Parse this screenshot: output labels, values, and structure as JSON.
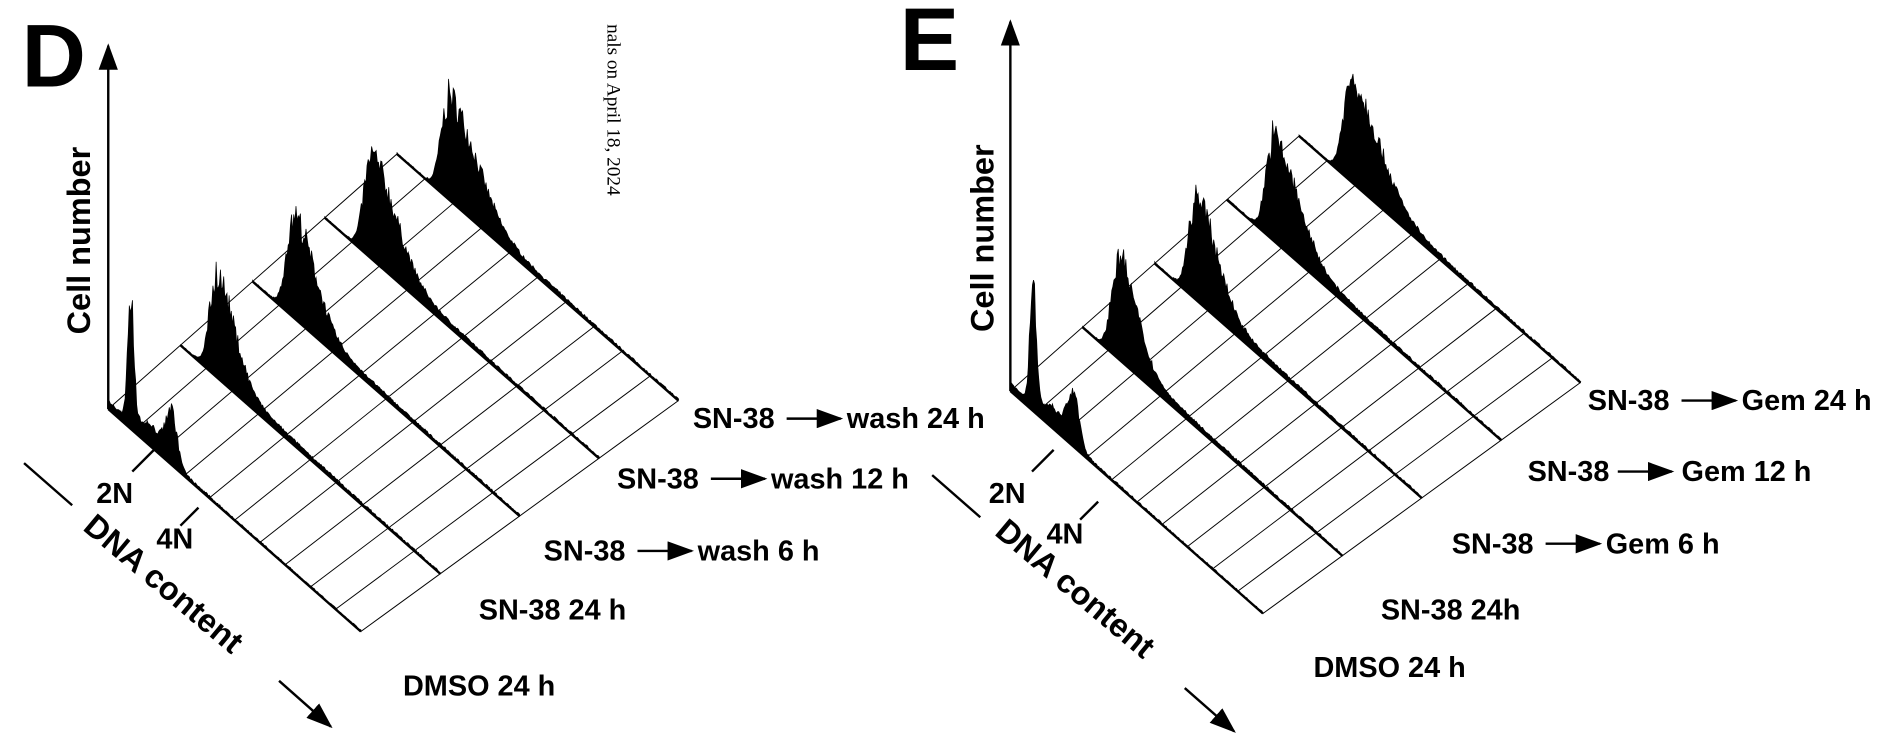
{
  "watermark": "nals on April 18, 2024",
  "panels": [
    {
      "label": "D",
      "y_axis_label": "Cell number",
      "x_axis_label": "DNA content",
      "peak_labels": [
        "2N",
        "4N"
      ],
      "samples": [
        {
          "name": "DMSO 24 h"
        },
        {
          "name": "SN-38 24 h"
        },
        {
          "treatment": "SN-38",
          "followup": "wash 6 h"
        },
        {
          "treatment": "SN-38",
          "followup": "wash 12 h"
        },
        {
          "treatment": "SN-38",
          "followup": "wash 24 h"
        }
      ]
    },
    {
      "label": "E",
      "y_axis_label": "Cell number",
      "x_axis_label": "DNA content",
      "peak_labels": [
        "2N",
        "4N"
      ],
      "samples": [
        {
          "name": "DMSO 24 h"
        },
        {
          "name": "SN-38 24h"
        },
        {
          "treatment": "SN-38",
          "followup": "Gem 6 h"
        },
        {
          "treatment": "SN-38",
          "followup": "Gem 12 h"
        },
        {
          "treatment": "SN-38",
          "followup": "Gem 24 h"
        }
      ]
    }
  ]
}
